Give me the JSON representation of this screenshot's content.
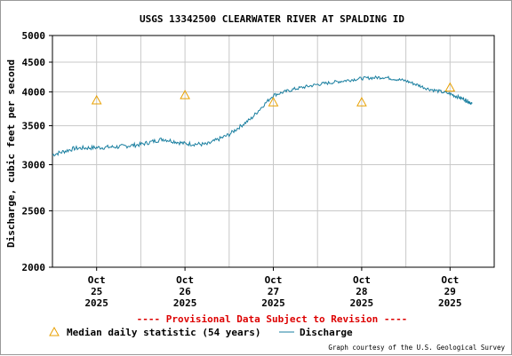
{
  "chart_data": {
    "type": "line",
    "title": "USGS 13342500 CLEARWATER RIVER AT SPALDING ID",
    "xlabel": "",
    "ylabel": "Discharge, cubic feet per second",
    "y_scale": "log",
    "ylim": [
      2000,
      5000
    ],
    "y_ticks": [
      2000,
      2500,
      3000,
      3500,
      4000,
      4500,
      5000
    ],
    "xlim": [
      "2025-10-24T12:00",
      "2025-10-29T12:00"
    ],
    "x_ticks": [
      {
        "date": "2025-10-25T00:00",
        "label": [
          "Oct",
          "25",
          "2025"
        ]
      },
      {
        "date": "2025-10-26T00:00",
        "label": [
          "Oct",
          "26",
          "2025"
        ]
      },
      {
        "date": "2025-10-27T00:00",
        "label": [
          "Oct",
          "27",
          "2025"
        ]
      },
      {
        "date": "2025-10-28T00:00",
        "label": [
          "Oct",
          "28",
          "2025"
        ]
      },
      {
        "date": "2025-10-29T00:00",
        "label": [
          "Oct",
          "29",
          "2025"
        ]
      }
    ],
    "grid": true,
    "series": [
      {
        "name": "Discharge",
        "color": "#1a7fa0",
        "x": [
          "2025-10-24T12:00",
          "2025-10-24T18:00",
          "2025-10-25T00:00",
          "2025-10-25T06:00",
          "2025-10-25T12:00",
          "2025-10-25T18:00",
          "2025-10-26T00:00",
          "2025-10-26T06:00",
          "2025-10-26T12:00",
          "2025-10-26T18:00",
          "2025-10-27T00:00",
          "2025-10-27T06:00",
          "2025-10-27T12:00",
          "2025-10-27T18:00",
          "2025-10-28T00:00",
          "2025-10-28T06:00",
          "2025-10-28T12:00",
          "2025-10-28T18:00",
          "2025-10-29T00:00",
          "2025-10-29T04:00",
          "2025-10-29T06:00"
        ],
        "values": [
          3120,
          3200,
          3210,
          3220,
          3250,
          3320,
          3260,
          3250,
          3380,
          3600,
          3950,
          4050,
          4120,
          4170,
          4220,
          4240,
          4180,
          4050,
          3970,
          3880,
          3820
        ]
      },
      {
        "name": "Median daily statistic (54 years)",
        "marker": "triangle",
        "color": "#e8a000",
        "x": [
          "2025-10-25T00:00",
          "2025-10-26T00:00",
          "2025-10-27T00:00",
          "2025-10-28T00:00",
          "2025-10-29T00:00"
        ],
        "values": [
          3870,
          3950,
          3840,
          3840,
          4070
        ]
      }
    ],
    "annotation": "---- Provisional Data Subject to Revision ----",
    "credit": "Graph courtesy of the U.S. Geological Survey",
    "legend": "bottom"
  },
  "colors": {
    "grid": "#c8c8c8",
    "axis": "#000000",
    "revision": "#dd0000"
  }
}
